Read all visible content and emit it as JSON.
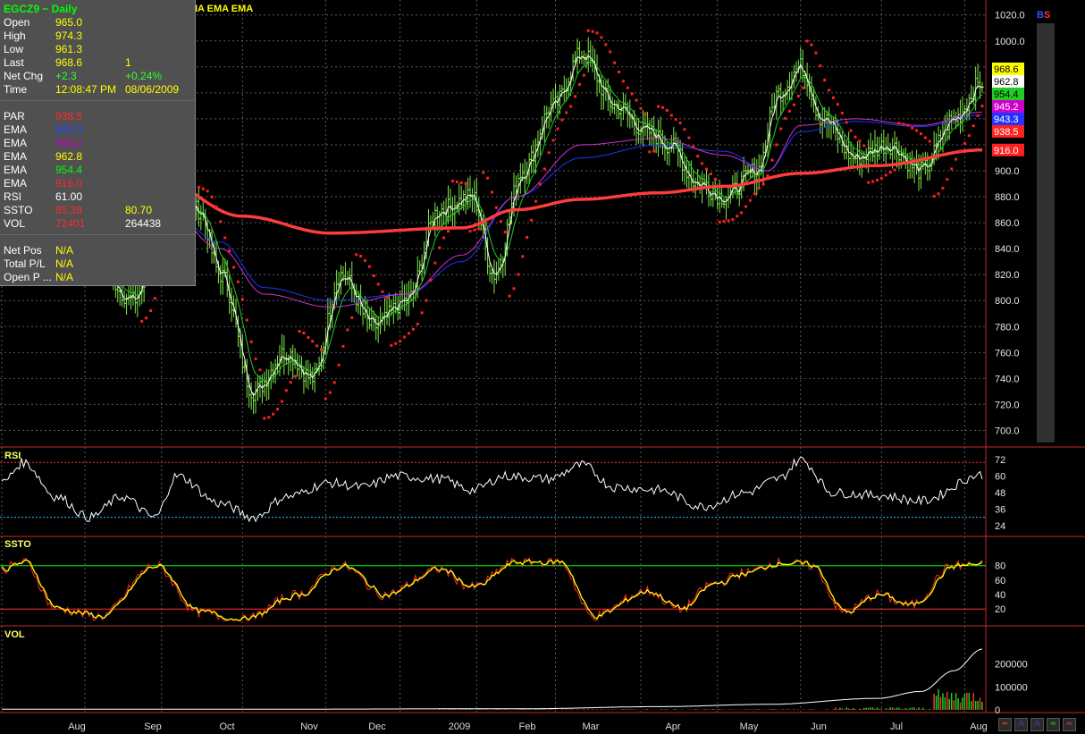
{
  "title_strip": "IA EMA EMA",
  "info": {
    "symbol": "EGCZ9 ~ Daily",
    "rows": [
      {
        "label": "Open",
        "v1": "965.0",
        "v1c": "yellow",
        "v2": "",
        "v2c": ""
      },
      {
        "label": "High",
        "v1": "974.3",
        "v1c": "yellow",
        "v2": "",
        "v2c": ""
      },
      {
        "label": "Low",
        "v1": "961.3",
        "v1c": "yellow",
        "v2": "",
        "v2c": ""
      },
      {
        "label": "Last",
        "v1": "968.6",
        "v1c": "yellow",
        "v2": "1",
        "v2c": "yellow"
      },
      {
        "label": "Net Chg",
        "v1": "+2.3",
        "v1c": "lime",
        "v2": "+0.24%",
        "v2c": "lime"
      },
      {
        "label": "Time",
        "v1": "12:08:47 PM",
        "v1c": "yellow",
        "v2": "08/06/2009",
        "v2c": "yellow"
      }
    ],
    "studies": [
      {
        "label": "PAR",
        "v1": "938.5",
        "v1c": "red",
        "v2": "",
        "v2c": ""
      },
      {
        "label": "EMA",
        "v1": "943.3",
        "v1c": "blue",
        "v2": "",
        "v2c": ""
      },
      {
        "label": "EMA",
        "v1": "945.2",
        "v1c": "magenta",
        "v2": "",
        "v2c": ""
      },
      {
        "label": "EMA",
        "v1": "962.8",
        "v1c": "yellow",
        "v2": "",
        "v2c": ""
      },
      {
        "label": "EMA",
        "v1": "954.4",
        "v1c": "green",
        "v2": "",
        "v2c": ""
      },
      {
        "label": "EMA",
        "v1": "916.0",
        "v1c": "red",
        "v2": "",
        "v2c": ""
      },
      {
        "label": "RSI",
        "v1": "61.00",
        "v1c": "white",
        "v2": "",
        "v2c": ""
      },
      {
        "label": "SSTO",
        "v1": "85.38",
        "v1c": "red",
        "v2": "80.70",
        "v2c": "yellow"
      },
      {
        "label": "VOL",
        "v1": "72401",
        "v1c": "red",
        "v2": "264438",
        "v2c": "white"
      }
    ],
    "position": [
      {
        "label": "Net Pos",
        "v1": "N/A",
        "v1c": "yellow"
      },
      {
        "label": "Total P/L",
        "v1": "N/A",
        "v1c": "yellow"
      },
      {
        "label": "Open P ...",
        "v1": "N/A",
        "v1c": "yellow"
      }
    ]
  },
  "bs": {
    "b": "B",
    "s": "S"
  },
  "colors": {
    "bars": "#7ee84a",
    "ema_blue": "#2233ff",
    "ema_magenta": "#cc33cc",
    "ema_yellow": "#ffffff",
    "ema_green": "#22cc22",
    "ema_red": "#ff3b3b",
    "par": "#ff2020",
    "grid": "#5a5a5a",
    "divider": "#c62828"
  },
  "tools": [
    "⇷",
    "∩",
    "∩",
    "≈",
    "≈"
  ],
  "chart_data": [
    {
      "type": "line",
      "panel": "price",
      "title": "EGCZ9 ~ Daily",
      "x_labels": [
        "Aug",
        "Sep",
        "Oct",
        "Nov",
        "Dec",
        "2009",
        "Feb",
        "Mar",
        "Apr",
        "May",
        "Jun",
        "Jul",
        "Aug"
      ],
      "ylim": [
        700,
        1020
      ],
      "yticks": [
        700,
        720,
        740,
        760,
        780,
        800,
        820,
        840,
        860,
        880,
        900,
        920,
        940,
        960,
        980,
        1000,
        1020
      ],
      "ytick_labels": [
        "700.0",
        "720.0",
        "740.0",
        "760.0",
        "780.0",
        "800.0",
        "820.0",
        "840.0",
        "860.0",
        "880.0",
        "900.0",
        "",
        "",
        "",
        "",
        "1000.0",
        "1020.0"
      ],
      "close_anchors": [
        [
          0,
          855
        ],
        [
          30,
          835
        ],
        [
          45,
          825
        ],
        [
          60,
          800
        ],
        [
          75,
          870
        ],
        [
          90,
          870
        ],
        [
          100,
          820
        ],
        [
          115,
          730
        ],
        [
          130,
          760
        ],
        [
          142,
          740
        ],
        [
          155,
          820
        ],
        [
          170,
          780
        ],
        [
          185,
          800
        ],
        [
          200,
          870
        ],
        [
          215,
          880
        ],
        [
          225,
          820
        ],
        [
          238,
          900
        ],
        [
          252,
          950
        ],
        [
          265,
          990
        ],
        [
          280,
          950
        ],
        [
          295,
          930
        ],
        [
          305,
          920
        ],
        [
          318,
          890
        ],
        [
          330,
          880
        ],
        [
          345,
          900
        ],
        [
          355,
          960
        ],
        [
          365,
          980
        ],
        [
          375,
          940
        ],
        [
          390,
          910
        ],
        [
          405,
          920
        ],
        [
          420,
          900
        ],
        [
          435,
          940
        ],
        [
          448,
          968
        ]
      ],
      "series": [
        {
          "name": "EMA",
          "color": "red",
          "anchors": [
            [
              0,
              905
            ],
            [
              45,
              900
            ],
            [
              70,
              895
            ],
            [
              110,
              865
            ],
            [
              150,
              852
            ],
            [
              210,
              856
            ],
            [
              235,
              870
            ],
            [
              265,
              878
            ],
            [
              300,
              883
            ],
            [
              330,
              888
            ],
            [
              365,
              898
            ],
            [
              400,
              904
            ],
            [
              448,
              916
            ]
          ]
        },
        {
          "name": "EMA",
          "color": "blue",
          "anchors": [
            [
              0,
              890
            ],
            [
              40,
              880
            ],
            [
              70,
              880
            ],
            [
              100,
              845
            ],
            [
              120,
              810
            ],
            [
              150,
              800
            ],
            [
              185,
              805
            ],
            [
              210,
              830
            ],
            [
              235,
              880
            ],
            [
              265,
              910
            ],
            [
              300,
              920
            ],
            [
              330,
              915
            ],
            [
              350,
              900
            ],
            [
              365,
              930
            ],
            [
              390,
              938
            ],
            [
              420,
              934
            ],
            [
              448,
              943
            ]
          ]
        },
        {
          "name": "EMA",
          "color": "magenta",
          "anchors": [
            [
              0,
              892
            ],
            [
              40,
              882
            ],
            [
              70,
              882
            ],
            [
              100,
              840
            ],
            [
              120,
              805
            ],
            [
              150,
              795
            ],
            [
              185,
              805
            ],
            [
              210,
              835
            ],
            [
              235,
              880
            ],
            [
              265,
              920
            ],
            [
              300,
              925
            ],
            [
              330,
              912
            ],
            [
              350,
              900
            ],
            [
              365,
              935
            ],
            [
              390,
              940
            ],
            [
              420,
              935
            ],
            [
              448,
              945.2
            ]
          ]
        }
      ],
      "value_tags": [
        {
          "value": "968.6",
          "color": "#ffff00",
          "text": "#000"
        },
        {
          "value": "962.8",
          "color": "#ffffff",
          "text": "#000"
        },
        {
          "value": "954.4",
          "color": "#22cc22",
          "text": "#000"
        },
        {
          "value": "945.2",
          "color": "#cc00cc",
          "text": "#fff"
        },
        {
          "value": "943.3",
          "color": "#2233ff",
          "text": "#fff"
        },
        {
          "value": "938.5",
          "color": "#ff2020",
          "text": "#fff"
        },
        {
          "value": "916.0",
          "color": "#ff2020",
          "text": "#fff"
        }
      ],
      "legend": "top-left"
    },
    {
      "type": "line",
      "panel": "rsi",
      "title": "RSI",
      "ylim": [
        20,
        76
      ],
      "yticks": [
        24,
        36,
        48,
        60,
        72
      ],
      "levels": [
        {
          "value": 70,
          "color": "#ff3030"
        },
        {
          "value": 30,
          "color": "#30c0ff"
        }
      ],
      "anchors": [
        [
          0,
          55
        ],
        [
          10,
          70
        ],
        [
          25,
          45
        ],
        [
          40,
          30
        ],
        [
          55,
          45
        ],
        [
          70,
          30
        ],
        [
          80,
          60
        ],
        [
          100,
          40
        ],
        [
          115,
          30
        ],
        [
          130,
          45
        ],
        [
          150,
          55
        ],
        [
          165,
          52
        ],
        [
          180,
          60
        ],
        [
          200,
          58
        ],
        [
          215,
          50
        ],
        [
          230,
          60
        ],
        [
          250,
          58
        ],
        [
          265,
          68
        ],
        [
          280,
          52
        ],
        [
          300,
          50
        ],
        [
          320,
          38
        ],
        [
          340,
          48
        ],
        [
          355,
          58
        ],
        [
          365,
          72
        ],
        [
          380,
          48
        ],
        [
          400,
          46
        ],
        [
          420,
          42
        ],
        [
          448,
          61
        ]
      ]
    },
    {
      "type": "line",
      "panel": "ssto",
      "title": "SSTO",
      "ylim": [
        0,
        100
      ],
      "yticks": [
        20,
        40,
        60,
        80
      ],
      "levels": [
        {
          "value": 80,
          "color": "#00ff00"
        },
        {
          "value": 20,
          "color": "#ff3030"
        }
      ],
      "anchors": [
        [
          0,
          75
        ],
        [
          10,
          85
        ],
        [
          25,
          20
        ],
        [
          45,
          10
        ],
        [
          70,
          80
        ],
        [
          90,
          15
        ],
        [
          110,
          5
        ],
        [
          135,
          40
        ],
        [
          155,
          80
        ],
        [
          175,
          40
        ],
        [
          200,
          75
        ],
        [
          215,
          50
        ],
        [
          235,
          85
        ],
        [
          255,
          85
        ],
        [
          270,
          10
        ],
        [
          295,
          45
        ],
        [
          310,
          20
        ],
        [
          325,
          55
        ],
        [
          340,
          70
        ],
        [
          355,
          85
        ],
        [
          370,
          80
        ],
        [
          385,
          15
        ],
        [
          400,
          40
        ],
        [
          415,
          25
        ],
        [
          435,
          80
        ],
        [
          448,
          82
        ]
      ]
    },
    {
      "type": "area",
      "panel": "volume",
      "title": "VOL",
      "ylim": [
        0,
        280000
      ],
      "yticks": [
        0,
        100000,
        200000
      ],
      "ytick_labels": [
        "0",
        "100000",
        "200000"
      ],
      "oi_anchors": [
        [
          0,
          3000
        ],
        [
          120,
          3000
        ],
        [
          240,
          5000
        ],
        [
          300,
          14000
        ],
        [
          350,
          24000
        ],
        [
          400,
          50000
        ],
        [
          420,
          80000
        ],
        [
          435,
          170000
        ],
        [
          448,
          264438
        ]
      ]
    }
  ]
}
